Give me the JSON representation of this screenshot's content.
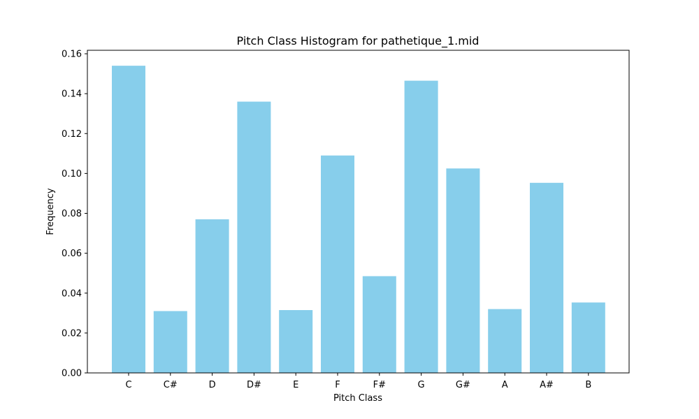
{
  "chart_data": {
    "type": "bar",
    "title": "Pitch Class Histogram for pathetique_1.mid",
    "xlabel": "Pitch Class",
    "ylabel": "Frequency",
    "categories": [
      "C",
      "C#",
      "D",
      "D#",
      "E",
      "F",
      "F#",
      "G",
      "G#",
      "A",
      "A#",
      "B"
    ],
    "values": [
      0.154,
      0.031,
      0.077,
      0.136,
      0.0315,
      0.109,
      0.0485,
      0.1465,
      0.1025,
      0.032,
      0.0953,
      0.0353
    ],
    "ylim": [
      0,
      0.16
    ],
    "yticks": [
      "0.00",
      "0.02",
      "0.04",
      "0.06",
      "0.08",
      "0.10",
      "0.12",
      "0.14",
      "0.16"
    ],
    "grid": false,
    "bar_color": "#87ceeb"
  }
}
